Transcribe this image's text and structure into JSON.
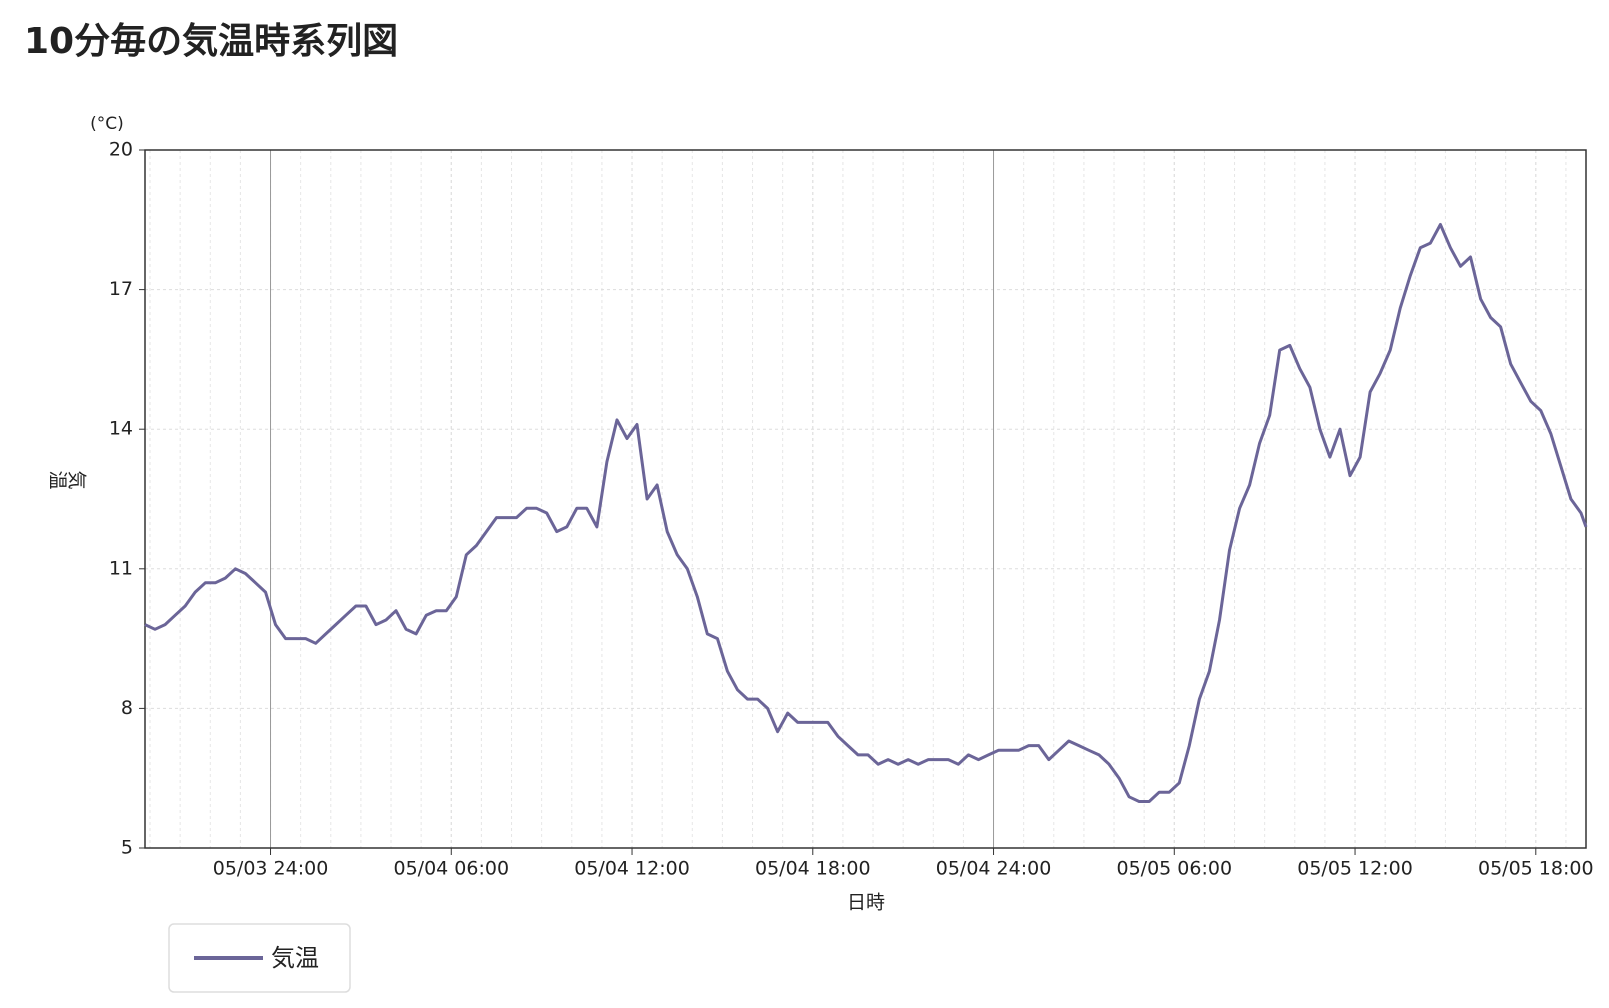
{
  "chart_data": {
    "type": "line",
    "title": "10分毎の気温時系列図",
    "y_unit": "(°C)",
    "ylabel": "気温",
    "xlabel": "日時",
    "xlim": [
      "05/03 19:50",
      "05/05 19:40"
    ],
    "xticks": [
      "05/03 24:00",
      "05/04 06:00",
      "05/04 12:00",
      "05/04 18:00",
      "05/04 24:00",
      "05/05 06:00",
      "05/05 12:00",
      "05/05 18:00"
    ],
    "ylim": [
      5,
      20
    ],
    "yticks": [
      5,
      8,
      11,
      14,
      17,
      20
    ],
    "grid": true,
    "x": [
      "05/03 19:50",
      "05/03 20:10",
      "05/03 20:30",
      "05/03 20:50",
      "05/03 21:10",
      "05/03 21:30",
      "05/03 21:50",
      "05/03 22:10",
      "05/03 22:30",
      "05/03 22:50",
      "05/03 23:10",
      "05/03 23:30",
      "05/03 23:50",
      "05/04 00:10",
      "05/04 00:30",
      "05/04 00:50",
      "05/04 01:10",
      "05/04 01:30",
      "05/04 01:50",
      "05/04 02:10",
      "05/04 02:30",
      "05/04 02:50",
      "05/04 03:10",
      "05/04 03:30",
      "05/04 03:50",
      "05/04 04:10",
      "05/04 04:30",
      "05/04 04:50",
      "05/04 05:10",
      "05/04 05:30",
      "05/04 05:50",
      "05/04 06:10",
      "05/04 06:30",
      "05/04 06:50",
      "05/04 07:10",
      "05/04 07:30",
      "05/04 07:50",
      "05/04 08:10",
      "05/04 08:30",
      "05/04 08:50",
      "05/04 09:10",
      "05/04 09:30",
      "05/04 09:50",
      "05/04 10:10",
      "05/04 10:30",
      "05/04 10:50",
      "05/04 11:10",
      "05/04 11:30",
      "05/04 11:50",
      "05/04 12:10",
      "05/04 12:30",
      "05/04 12:50",
      "05/04 13:10",
      "05/04 13:30",
      "05/04 13:50",
      "05/04 14:10",
      "05/04 14:30",
      "05/04 14:50",
      "05/04 15:10",
      "05/04 15:30",
      "05/04 15:50",
      "05/04 16:10",
      "05/04 16:30",
      "05/04 16:50",
      "05/04 17:10",
      "05/04 17:30",
      "05/04 17:50",
      "05/04 18:10",
      "05/04 18:30",
      "05/04 18:50",
      "05/04 19:10",
      "05/04 19:30",
      "05/04 19:50",
      "05/04 20:10",
      "05/04 20:30",
      "05/04 20:50",
      "05/04 21:10",
      "05/04 21:30",
      "05/04 21:50",
      "05/04 22:10",
      "05/04 22:30",
      "05/04 22:50",
      "05/04 23:10",
      "05/04 23:30",
      "05/04 23:50",
      "05/05 00:10",
      "05/05 00:30",
      "05/05 00:50",
      "05/05 01:10",
      "05/05 01:30",
      "05/05 01:50",
      "05/05 02:10",
      "05/05 02:30",
      "05/05 02:50",
      "05/05 03:10",
      "05/05 03:30",
      "05/05 03:50",
      "05/05 04:10",
      "05/05 04:30",
      "05/05 04:50",
      "05/05 05:10",
      "05/05 05:30",
      "05/05 05:50",
      "05/05 06:10",
      "05/05 06:30",
      "05/05 06:50",
      "05/05 07:10",
      "05/05 07:30",
      "05/05 07:50",
      "05/05 08:10",
      "05/05 08:30",
      "05/05 08:50",
      "05/05 09:10",
      "05/05 09:30",
      "05/05 09:50",
      "05/05 10:10",
      "05/05 10:30",
      "05/05 10:50",
      "05/05 11:10",
      "05/05 11:30",
      "05/05 11:50",
      "05/05 12:10",
      "05/05 12:30",
      "05/05 12:50",
      "05/05 13:10",
      "05/05 13:30",
      "05/05 13:50",
      "05/05 14:10",
      "05/05 14:30",
      "05/05 14:50",
      "05/05 15:10",
      "05/05 15:30",
      "05/05 15:50",
      "05/05 16:10",
      "05/05 16:30",
      "05/05 16:50",
      "05/05 17:10",
      "05/05 17:30",
      "05/05 17:50",
      "05/05 18:10",
      "05/05 18:30",
      "05/05 18:50",
      "05/05 19:10",
      "05/05 19:30",
      "05/05 19:40"
    ],
    "series": [
      {
        "name": "気温",
        "color": "#6b6598",
        "values": [
          9.8,
          9.7,
          9.8,
          10.0,
          10.2,
          10.5,
          10.7,
          10.7,
          10.8,
          11.0,
          10.9,
          10.7,
          10.5,
          9.8,
          9.5,
          9.5,
          9.5,
          9.4,
          9.6,
          9.8,
          10.0,
          10.2,
          10.2,
          9.8,
          9.9,
          10.1,
          9.7,
          9.6,
          10.0,
          10.1,
          10.1,
          10.4,
          11.3,
          11.5,
          11.8,
          12.1,
          12.1,
          12.1,
          12.3,
          12.3,
          12.2,
          11.8,
          11.9,
          12.3,
          12.3,
          11.9,
          13.3,
          14.2,
          13.8,
          14.1,
          12.5,
          12.8,
          11.8,
          11.3,
          11.0,
          10.4,
          9.6,
          9.5,
          8.8,
          8.4,
          8.2,
          8.2,
          8.0,
          7.5,
          7.9,
          7.7,
          7.7,
          7.7,
          7.7,
          7.4,
          7.2,
          7.0,
          7.0,
          6.8,
          6.9,
          6.8,
          6.9,
          6.8,
          6.9,
          6.9,
          6.9,
          6.8,
          7.0,
          6.9,
          7.0,
          7.1,
          7.1,
          7.1,
          7.2,
          7.2,
          6.9,
          7.1,
          7.3,
          7.2,
          7.1,
          7.0,
          6.8,
          6.5,
          6.1,
          6.0,
          6.0,
          6.2,
          6.2,
          6.4,
          7.2,
          8.2,
          8.8,
          9.9,
          11.4,
          12.3,
          12.8,
          13.7,
          14.3,
          15.7,
          15.8,
          15.3,
          14.9,
          14.0,
          13.4,
          14.0,
          13.0,
          13.4,
          14.8,
          15.2,
          15.7,
          16.6,
          17.3,
          17.9,
          18.0,
          18.4,
          17.9,
          17.5,
          17.7,
          16.8,
          16.4,
          16.2,
          15.4,
          15.0,
          14.6,
          14.4,
          13.9,
          13.2,
          12.5,
          12.2,
          11.9
        ]
      }
    ]
  }
}
